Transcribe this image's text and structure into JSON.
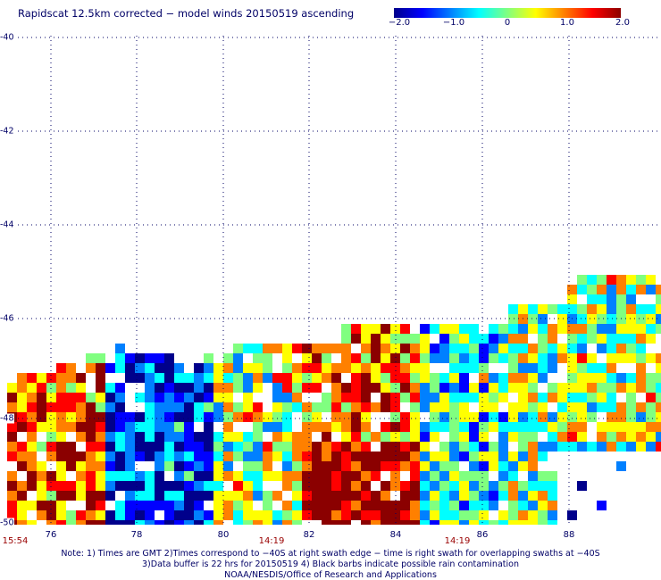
{
  "title": "Rapidscat 12.5km corrected − model winds 20150519 ascending",
  "colorbar": {
    "labels": [
      "−2.0",
      "−1.0",
      "0",
      "1.0",
      "2.0"
    ],
    "colors": [
      "#00008b",
      "#0000ff",
      "#0080ff",
      "#00ffff",
      "#80ff80",
      "#ffff00",
      "#ff8000",
      "#ff0000",
      "#8b0000"
    ]
  },
  "axes": {
    "y_ticks": [
      "-40",
      "-42",
      "-44",
      "-46",
      "-48",
      "-50"
    ],
    "x_ticks": [
      "76",
      "78",
      "80",
      "82",
      "84",
      "86",
      "88"
    ]
  },
  "times": {
    "left": "15:54",
    "mid": "14:19",
    "right": "14:19"
  },
  "notes": {
    "line1": "Note: 1) Times are GMT 2)Times correspond to −40S at right swath edge − time is right swath for overlapping swaths at −40S",
    "line2": "3)Data buffer is 22 hrs for 20150519 4) Black barbs indicate possible rain contamination",
    "line3": "NOAA/NESDIS/Office of Research and Applications"
  }
}
